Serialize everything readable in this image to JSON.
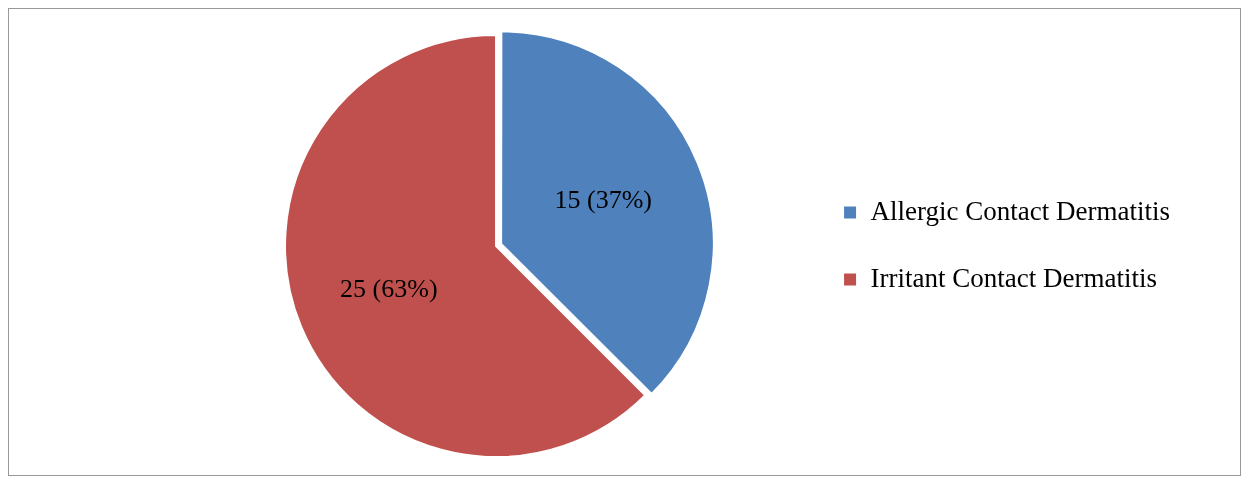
{
  "chart_data": {
    "type": "pie",
    "categories": [
      "Allergic Contact Dermatitis",
      "Irritant Contact Dermatitis"
    ],
    "values": [
      15,
      25
    ],
    "colors": [
      "#4f81bd",
      "#c0504d"
    ],
    "value_labels": [
      "15 (37%)",
      "25 (63%)"
    ],
    "legend": "right"
  }
}
